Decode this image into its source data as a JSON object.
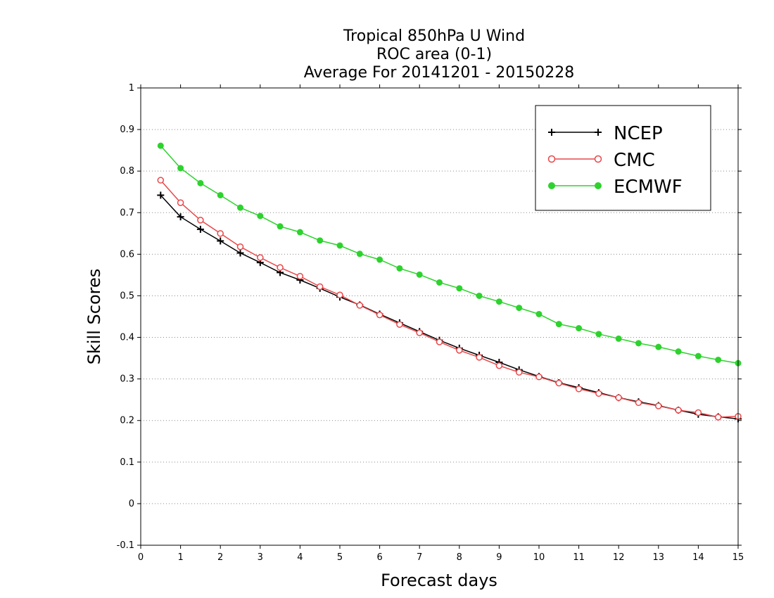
{
  "chart_data": {
    "type": "line",
    "title": [
      "Tropical 850hPa U Wind",
      "ROC area (0-1)",
      "Average For 20141201 - 20150228"
    ],
    "xlabel": "Forecast days",
    "ylabel": "Skill Scores",
    "xlim": [
      0,
      15
    ],
    "ylim": [
      -0.1,
      1
    ],
    "xticks": [
      0,
      1,
      2,
      3,
      4,
      5,
      6,
      7,
      8,
      9,
      10,
      11,
      12,
      13,
      14,
      15
    ],
    "yticks": [
      -0.1,
      0,
      0.1,
      0.2,
      0.3,
      0.4,
      0.5,
      0.6,
      0.7,
      0.8,
      0.9,
      1
    ],
    "ytick_labels": [
      "-0.1",
      "0",
      "0.1",
      "0.2",
      "0.3",
      "0.4",
      "0.5",
      "0.6",
      "0.7",
      "0.8",
      "0.9",
      "1"
    ],
    "grid": "horizontal dotted",
    "legend_position": "top-right",
    "x": [
      0.5,
      1,
      1.5,
      2,
      2.5,
      3,
      3.5,
      4,
      4.5,
      5,
      5.5,
      6,
      6.5,
      7,
      7.5,
      8,
      8.5,
      9,
      9.5,
      10,
      10.5,
      11,
      11.5,
      12,
      12.5,
      13,
      13.5,
      14,
      14.5,
      15
    ],
    "series": [
      {
        "name": "NCEP",
        "color": "#000000",
        "marker": "plus",
        "values": [
          0.742,
          0.69,
          0.66,
          0.632,
          0.603,
          0.58,
          0.556,
          0.538,
          0.518,
          0.497,
          0.478,
          0.456,
          0.435,
          0.414,
          0.393,
          0.374,
          0.357,
          0.34,
          0.322,
          0.306,
          0.291,
          0.279,
          0.267,
          0.255,
          0.245,
          0.236,
          0.225,
          0.215,
          0.209,
          0.204
        ]
      },
      {
        "name": "CMC",
        "color": "#e8474a",
        "marker": "open-circle",
        "values": [
          0.778,
          0.724,
          0.682,
          0.65,
          0.618,
          0.592,
          0.568,
          0.547,
          0.522,
          0.502,
          0.477,
          0.454,
          0.431,
          0.411,
          0.389,
          0.369,
          0.352,
          0.332,
          0.316,
          0.305,
          0.29,
          0.276,
          0.265,
          0.255,
          0.243,
          0.235,
          0.225,
          0.219,
          0.208,
          0.21
        ]
      },
      {
        "name": "ECMWF",
        "color": "#2ed22e",
        "marker": "filled-circle",
        "values": [
          0.861,
          0.807,
          0.771,
          0.742,
          0.712,
          0.692,
          0.667,
          0.653,
          0.633,
          0.621,
          0.601,
          0.587,
          0.566,
          0.551,
          0.532,
          0.518,
          0.5,
          0.486,
          0.471,
          0.456,
          0.432,
          0.422,
          0.408,
          0.397,
          0.386,
          0.377,
          0.366,
          0.355,
          0.346,
          0.338
        ]
      }
    ]
  }
}
